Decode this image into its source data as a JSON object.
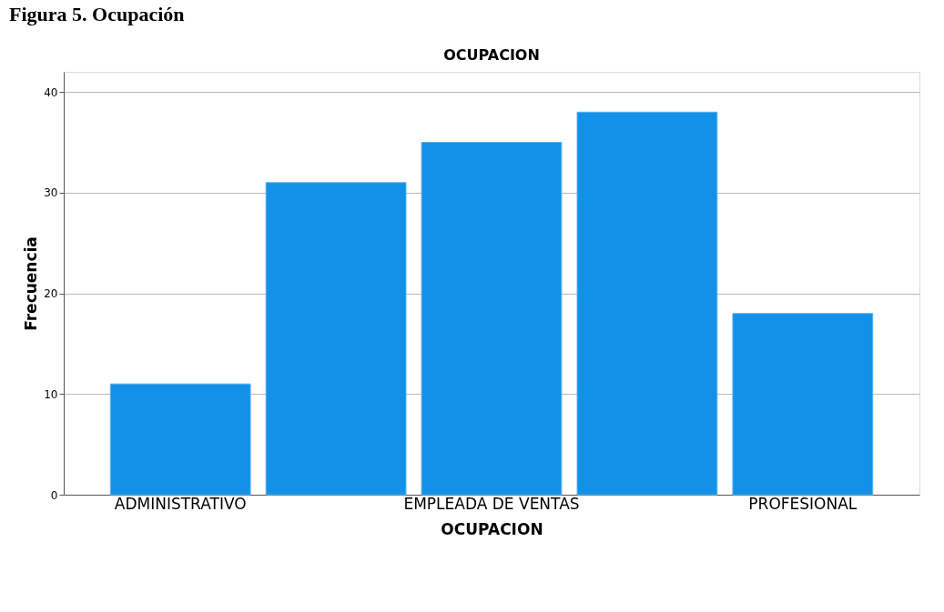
{
  "chart_data": {
    "type": "bar",
    "title": "OCUPACION",
    "xlabel": "OCUPACION",
    "ylabel": "Frecuencia",
    "categories": [
      "ADMINISTRATIVO",
      null,
      "EMPLEADA DE VENTAS",
      null,
      "PROFESIONAL"
    ],
    "values": [
      11,
      31,
      35,
      38,
      18
    ],
    "color": "#1391e6",
    "ylim": [
      0,
      42
    ],
    "yticks": [
      0,
      10,
      20,
      30,
      40
    ],
    "grid": "y",
    "annotations": [
      "Figura 5. Ocupación"
    ]
  }
}
